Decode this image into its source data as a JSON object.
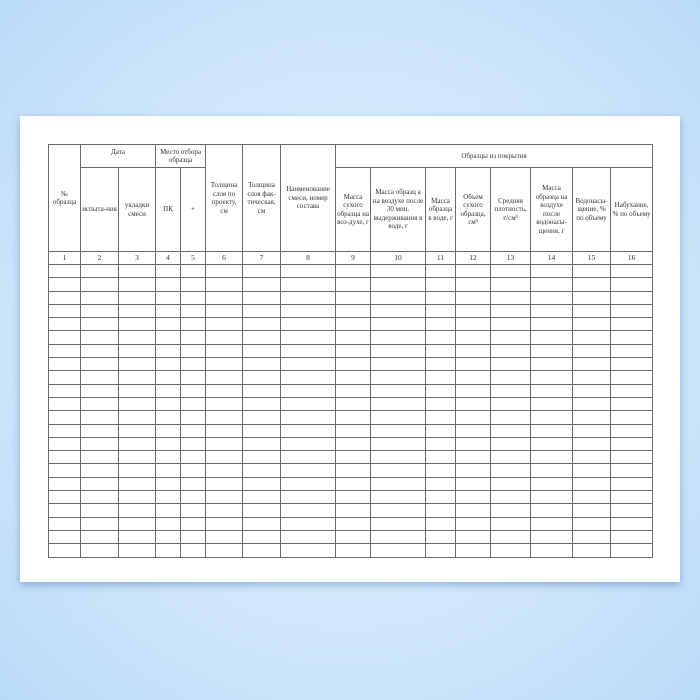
{
  "header": {
    "sample_no": "№ образца",
    "date": "Дата",
    "date_test": "испыта-ния",
    "date_laying": "укладки смеси",
    "place": "Место отбора образца",
    "pk": "ПК",
    "plus": "+",
    "thick_design": "Толщина слоя по проекту, см",
    "thick_actual": "Толщина слоя фак-тическая, см",
    "mix_name": "Наименование смеси, номер состава",
    "samples_group": "Образцы из покрытия",
    "c9": "Масса сухого образца на воз-духе, г",
    "c10": "Масса образц а на воздухе после 30 мин. выдерживания в воде, г",
    "c11": "Масса образца в воде, г",
    "c12": "Объем сухого образца, см³",
    "c13": "Средняя плотность, г/см³",
    "c14": "Масса образца на воздухе после водонасы-щения, г",
    "c15": "Водонасы-щение, % по объему",
    "c16": "Набухание, % по объему"
  },
  "column_numbers": [
    "1",
    "2",
    "3",
    "4",
    "5",
    "6",
    "7",
    "8",
    "9",
    "10",
    "11",
    "12",
    "13",
    "14",
    "15",
    "16"
  ],
  "empty_rows": 22
}
